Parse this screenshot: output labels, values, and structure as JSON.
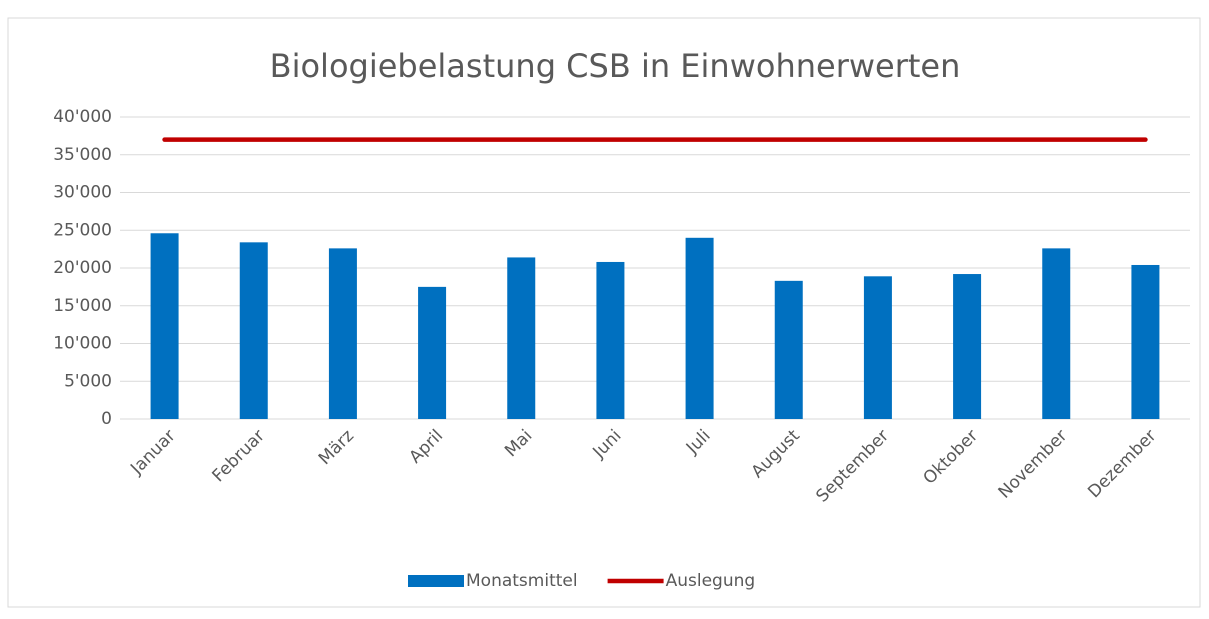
{
  "chart_data": {
    "type": "bar",
    "title": "Biologiebelastung CSB in Einwohnerwerten",
    "categories": [
      "Januar",
      "Februar",
      "März",
      "April",
      "Mai",
      "Juni",
      "Juli",
      "August",
      "September",
      "Oktober",
      "November",
      "Dezember"
    ],
    "series": [
      {
        "name": "Monatsmittel",
        "type": "bar",
        "color": "#0070c0",
        "values": [
          24600,
          23400,
          22600,
          17500,
          21400,
          20800,
          24000,
          18300,
          18900,
          19200,
          22600,
          20400
        ]
      },
      {
        "name": "Auslegung",
        "type": "line",
        "color": "#c00000",
        "values": [
          37000,
          37000,
          37000,
          37000,
          37000,
          37000,
          37000,
          37000,
          37000,
          37000,
          37000,
          37000
        ]
      }
    ],
    "ylim": [
      0,
      40000
    ],
    "yticks": [
      0,
      {
        "value": 5000,
        "label": "5'000"
      },
      {
        "value": 10000,
        "label": "10'000"
      },
      {
        "value": 15000,
        "label": "15'000"
      },
      {
        "value": 20000,
        "label": "20'000"
      },
      {
        "value": 25000,
        "label": "25'000"
      },
      {
        "value": 30000,
        "label": "30'000"
      },
      {
        "value": 35000,
        "label": "35'000"
      },
      {
        "value": 40000,
        "label": "40'000"
      }
    ],
    "grid": true,
    "legend": "bottom"
  }
}
